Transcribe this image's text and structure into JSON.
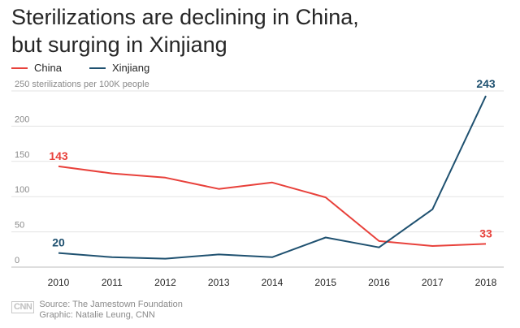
{
  "title_lines": [
    "Sterilizations are declining in China,",
    "but surging in Xinjiang"
  ],
  "legend": [
    {
      "name": "China",
      "color": "#e8413b"
    },
    {
      "name": "Xinjiang",
      "color": "#1f5170"
    }
  ],
  "footer": {
    "logo": "CNN",
    "source": "Source: The Jamestown Foundation",
    "credit": "Graphic: Natalie Leung, CNN"
  },
  "chart_data": {
    "type": "line",
    "title": "Sterilizations are declining in China, but surging in Xinjiang",
    "ylabel": "sterilizations per 100K people",
    "x": [
      "2010",
      "2011",
      "2012",
      "2013",
      "2014",
      "2015",
      "2016",
      "2017",
      "2018"
    ],
    "ylim": [
      0,
      250
    ],
    "yticks": [
      0,
      50,
      100,
      150,
      200,
      250
    ],
    "ytick_labels": [
      "0",
      "50",
      "100",
      "150",
      "200",
      "250 sterilizations per 100K people"
    ],
    "grid": true,
    "legend_position": "top-left",
    "series": [
      {
        "name": "China",
        "color": "#e8413b",
        "values": [
          143,
          133,
          127,
          111,
          120,
          99,
          37,
          30,
          33
        ]
      },
      {
        "name": "Xinjiang",
        "color": "#1f5170",
        "values": [
          20,
          14,
          12,
          18,
          14,
          42,
          28,
          82,
          243
        ]
      }
    ],
    "annotations": [
      {
        "series": "China",
        "x": "2010",
        "text": "143"
      },
      {
        "series": "Xinjiang",
        "x": "2010",
        "text": "20"
      },
      {
        "series": "Xinjiang",
        "x": "2018",
        "text": "243"
      },
      {
        "series": "China",
        "x": "2018",
        "text": "33"
      }
    ]
  }
}
